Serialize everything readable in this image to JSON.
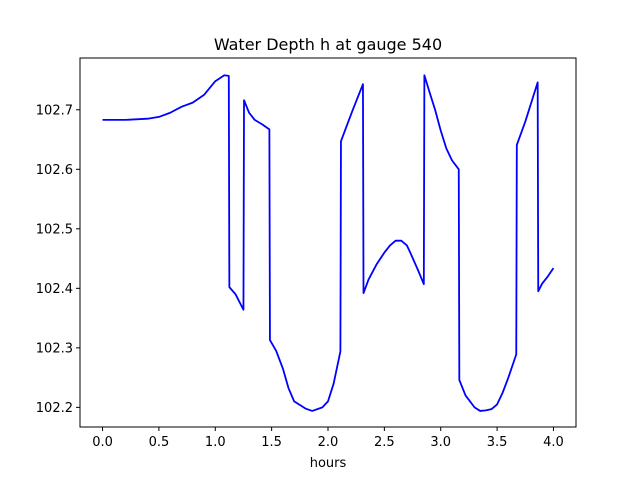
{
  "chart_data": {
    "type": "line",
    "title": "Water Depth h at gauge 540",
    "xlabel": "hours",
    "ylabel": "",
    "xlim": [
      -0.2,
      4.2
    ],
    "ylim": [
      102.167,
      102.787
    ],
    "xticks": [
      0.0,
      0.5,
      1.0,
      1.5,
      2.0,
      2.5,
      3.0,
      3.5,
      4.0
    ],
    "xtick_labels": [
      "0.0",
      "0.5",
      "1.0",
      "1.5",
      "2.0",
      "2.5",
      "3.0",
      "3.5",
      "4.0"
    ],
    "yticks": [
      102.2,
      102.3,
      102.4,
      102.5,
      102.6,
      102.7
    ],
    "ytick_labels": [
      "102.2",
      "102.3",
      "102.4",
      "102.5",
      "102.6",
      "102.7"
    ],
    "grid": false,
    "color": "#0000ff",
    "series": [
      {
        "x": [
          0.0,
          0.2,
          0.4,
          0.5,
          0.6,
          0.7,
          0.8,
          0.9,
          1.0,
          1.08,
          1.12,
          1.125,
          1.18,
          1.25,
          1.255,
          1.3,
          1.35,
          1.42,
          1.48,
          1.485,
          1.54,
          1.6,
          1.65,
          1.7,
          1.8,
          1.86,
          1.95,
          2.0,
          2.05,
          2.11,
          2.115,
          2.16,
          2.22,
          2.31,
          2.315,
          2.36,
          2.43,
          2.5,
          2.55,
          2.6,
          2.65,
          2.7,
          2.73,
          2.8,
          2.85,
          2.855,
          2.9,
          2.95,
          3.0,
          3.05,
          3.1,
          3.16,
          3.165,
          3.22,
          3.3,
          3.35,
          3.4,
          3.45,
          3.5,
          3.55,
          3.6,
          3.67,
          3.675,
          3.75,
          3.86,
          3.865,
          3.9,
          3.95,
          4.0
        ],
        "y": [
          102.683,
          102.683,
          102.685,
          102.688,
          102.695,
          102.705,
          102.712,
          102.725,
          102.748,
          102.758,
          102.757,
          102.402,
          102.39,
          102.364,
          102.716,
          102.695,
          102.683,
          102.675,
          102.667,
          102.313,
          102.295,
          102.265,
          102.232,
          102.21,
          102.198,
          102.194,
          102.2,
          102.21,
          102.24,
          102.294,
          102.647,
          102.67,
          102.7,
          102.743,
          102.392,
          102.415,
          102.44,
          102.46,
          102.472,
          102.48,
          102.48,
          102.472,
          102.46,
          102.43,
          102.407,
          102.758,
          102.73,
          102.7,
          102.665,
          102.635,
          102.615,
          102.6,
          102.246,
          102.22,
          102.2,
          102.194,
          102.195,
          102.197,
          102.205,
          102.225,
          102.25,
          102.289,
          102.641,
          102.68,
          102.746,
          102.395,
          102.408,
          102.42,
          102.434
        ]
      }
    ]
  }
}
